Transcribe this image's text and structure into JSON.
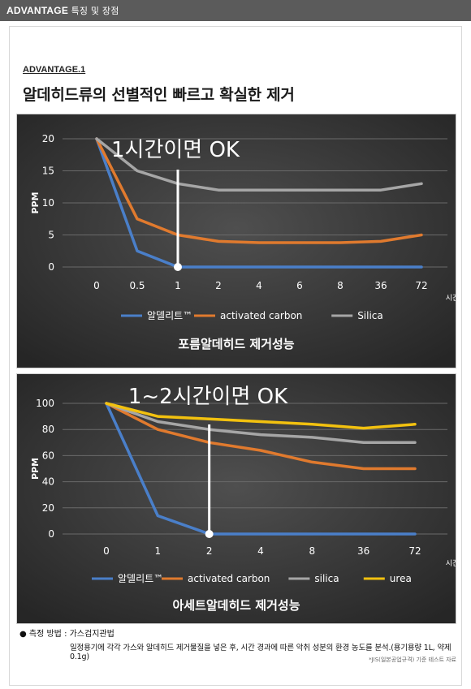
{
  "header": {
    "brand": "ADVANTAGE",
    "subtitle": "특징 및 장점"
  },
  "section": {
    "label": "ADVANTAGE.1",
    "headline": "알데히드류의 선별적인 빠르고 확실한 제거"
  },
  "colors": {
    "series1": "#4a7fc9",
    "series2": "#e07a2e",
    "series3": "#a6a6a6",
    "series4": "#f2c10f"
  },
  "chart_data": [
    {
      "type": "line",
      "title": "포름알데히드 제거성능",
      "annotation": "1시간이면 OK",
      "marker_category": "1",
      "ylabel": "PPM",
      "xlabel": "시간",
      "categories": [
        "0",
        "0.5",
        "1",
        "2",
        "4",
        "6",
        "8",
        "36",
        "72"
      ],
      "ylim": [
        0,
        20
      ],
      "yticks": [
        0,
        5,
        10,
        15,
        20
      ],
      "grid": true,
      "legend": "bottom",
      "series": [
        {
          "name": "알델리트™",
          "values": [
            20,
            2.5,
            0,
            0,
            0,
            0,
            0,
            0,
            0
          ]
        },
        {
          "name": "activated carbon",
          "values": [
            20,
            7.5,
            5,
            4,
            3.8,
            3.8,
            3.8,
            4,
            5
          ]
        },
        {
          "name": "Silica",
          "values": [
            20,
            15,
            13,
            12,
            12,
            12,
            12,
            12,
            13
          ]
        }
      ]
    },
    {
      "type": "line",
      "title": "아세트알데히드 제거성능",
      "annotation": "1~2시간이면 OK",
      "marker_category": "2",
      "ylabel": "PPM",
      "xlabel": "시간",
      "categories": [
        "0",
        "1",
        "2",
        "4",
        "8",
        "36",
        "72"
      ],
      "ylim": [
        0,
        100
      ],
      "yticks": [
        0,
        20,
        40,
        60,
        80,
        100
      ],
      "grid": true,
      "legend": "bottom",
      "series": [
        {
          "name": "알델리트™",
          "values": [
            100,
            14,
            0,
            0,
            0,
            0,
            0
          ]
        },
        {
          "name": "activated carbon",
          "values": [
            100,
            80,
            70,
            64,
            55,
            50,
            50
          ]
        },
        {
          "name": "silica",
          "values": [
            100,
            86,
            80,
            76,
            74,
            70,
            70
          ]
        },
        {
          "name": "urea",
          "values": [
            100,
            90,
            88,
            86,
            84,
            81,
            84
          ]
        }
      ]
    }
  ],
  "notes": {
    "method": "측정 방법 : 가스검지관법",
    "detail": "일정용기에 각각 가스와 알데히드 제거물질을 넣은 후, 시간 경과에 따른 악취 성분의 환경 농도를 분석.(용기용량 1L, 약제 0.1g)",
    "source": "*JIS(일본공업규격) 기준 테스트 자료"
  }
}
